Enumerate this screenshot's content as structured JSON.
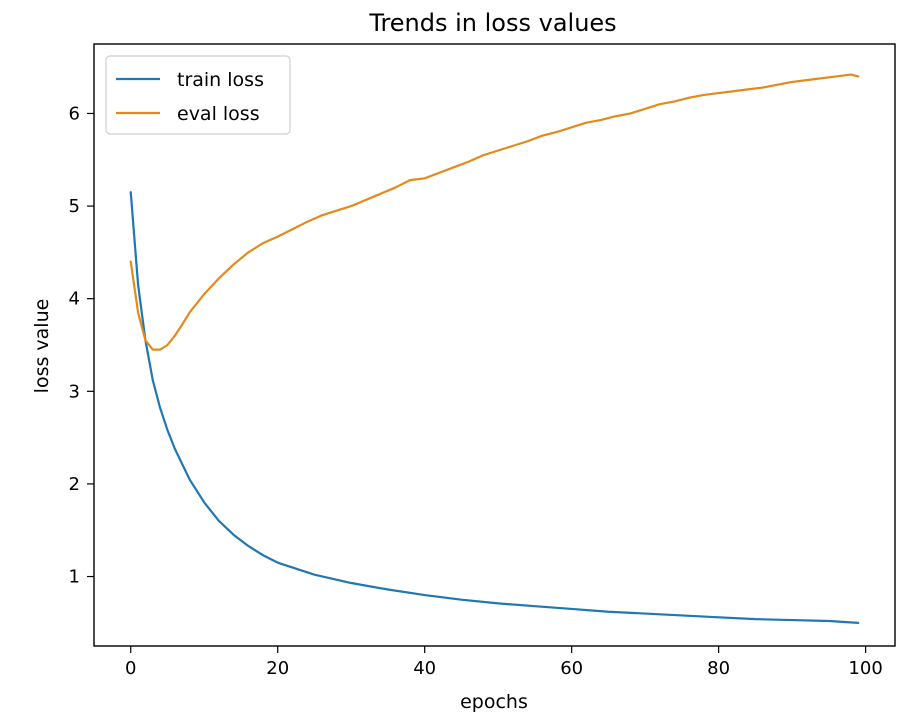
{
  "chart_data": {
    "type": "line",
    "title": "Trends in loss values",
    "xlabel": "epochs",
    "ylabel": "loss value",
    "xlim": [
      -5,
      104
    ],
    "ylim": [
      0.25,
      6.75
    ],
    "xticks": [
      0,
      20,
      40,
      60,
      80,
      100
    ],
    "yticks": [
      1,
      2,
      3,
      4,
      5,
      6
    ],
    "grid": false,
    "legend_position": "upper-left",
    "series": [
      {
        "name": "train loss",
        "color": "#1f77b4",
        "points": [
          [
            0,
            5.15
          ],
          [
            1,
            4.15
          ],
          [
            2,
            3.55
          ],
          [
            3,
            3.12
          ],
          [
            4,
            2.82
          ],
          [
            5,
            2.58
          ],
          [
            6,
            2.38
          ],
          [
            8,
            2.05
          ],
          [
            10,
            1.8
          ],
          [
            12,
            1.6
          ],
          [
            14,
            1.45
          ],
          [
            16,
            1.33
          ],
          [
            18,
            1.23
          ],
          [
            20,
            1.15
          ],
          [
            25,
            1.02
          ],
          [
            30,
            0.93
          ],
          [
            35,
            0.86
          ],
          [
            40,
            0.8
          ],
          [
            45,
            0.75
          ],
          [
            50,
            0.71
          ],
          [
            55,
            0.68
          ],
          [
            60,
            0.65
          ],
          [
            65,
            0.62
          ],
          [
            70,
            0.6
          ],
          [
            75,
            0.58
          ],
          [
            80,
            0.56
          ],
          [
            85,
            0.54
          ],
          [
            90,
            0.53
          ],
          [
            95,
            0.52
          ],
          [
            99,
            0.5
          ]
        ]
      },
      {
        "name": "eval loss",
        "color": "#e38a1c",
        "points": [
          [
            0,
            4.4
          ],
          [
            1,
            3.85
          ],
          [
            2,
            3.55
          ],
          [
            3,
            3.45
          ],
          [
            4,
            3.45
          ],
          [
            5,
            3.5
          ],
          [
            6,
            3.6
          ],
          [
            7,
            3.72
          ],
          [
            8,
            3.85
          ],
          [
            10,
            4.05
          ],
          [
            12,
            4.22
          ],
          [
            14,
            4.37
          ],
          [
            16,
            4.5
          ],
          [
            18,
            4.6
          ],
          [
            20,
            4.67
          ],
          [
            22,
            4.75
          ],
          [
            24,
            4.83
          ],
          [
            26,
            4.9
          ],
          [
            28,
            4.95
          ],
          [
            30,
            5.0
          ],
          [
            33,
            5.1
          ],
          [
            36,
            5.2
          ],
          [
            38,
            5.28
          ],
          [
            40,
            5.3
          ],
          [
            42,
            5.36
          ],
          [
            44,
            5.42
          ],
          [
            46,
            5.48
          ],
          [
            48,
            5.55
          ],
          [
            50,
            5.6
          ],
          [
            52,
            5.65
          ],
          [
            54,
            5.7
          ],
          [
            56,
            5.76
          ],
          [
            58,
            5.8
          ],
          [
            60,
            5.85
          ],
          [
            62,
            5.9
          ],
          [
            64,
            5.93
          ],
          [
            66,
            5.97
          ],
          [
            68,
            6.0
          ],
          [
            70,
            6.05
          ],
          [
            72,
            6.1
          ],
          [
            74,
            6.13
          ],
          [
            76,
            6.17
          ],
          [
            78,
            6.2
          ],
          [
            80,
            6.22
          ],
          [
            82,
            6.24
          ],
          [
            84,
            6.26
          ],
          [
            86,
            6.28
          ],
          [
            88,
            6.31
          ],
          [
            90,
            6.34
          ],
          [
            92,
            6.36
          ],
          [
            94,
            6.38
          ],
          [
            96,
            6.4
          ],
          [
            98,
            6.42
          ],
          [
            99,
            6.4
          ]
        ]
      }
    ]
  }
}
